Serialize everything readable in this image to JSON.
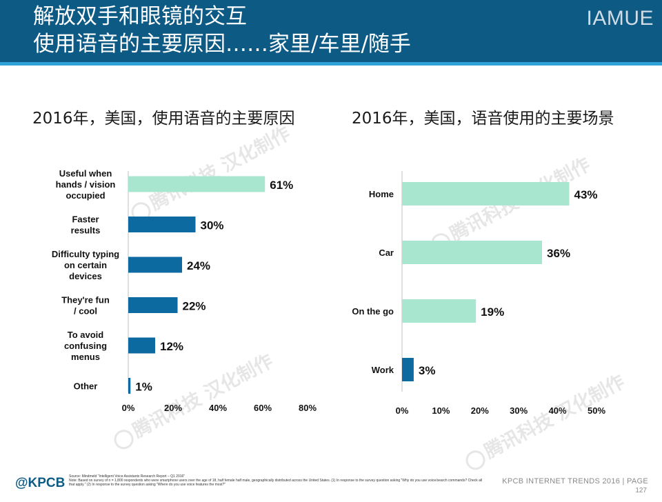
{
  "header": {
    "title_line1": "解放双手和眼镜的交互",
    "title_line2": "使用语音的主要原因……家里/车里/随手",
    "brand": "IAMUE"
  },
  "colors": {
    "header_bg": "#0d5a85",
    "accent_line": "#2fa3d8",
    "bar_light": "#a8e6cf",
    "bar_dark": "#0d6aa0"
  },
  "watermark_text": "腾讯科技 汉化制作",
  "chart_data": [
    {
      "type": "bar",
      "orientation": "horizontal",
      "title": "2016年，美国，使用语音的主要原因",
      "categories": [
        "Useful when hands / vision occupied",
        "Faster results",
        "Difficulty typing on certain devices",
        "They're fun / cool",
        "To avoid confusing menus",
        "Other"
      ],
      "category_lines": [
        [
          "Useful when",
          "hands / vision",
          "occupied"
        ],
        [
          "Faster",
          "results"
        ],
        [
          "Difficulty typing",
          "on certain",
          "devices"
        ],
        [
          "They're fun",
          "/ cool"
        ],
        [
          "To avoid",
          "confusing",
          "menus"
        ],
        [
          "Other"
        ]
      ],
      "values": [
        61,
        30,
        24,
        22,
        12,
        1
      ],
      "value_labels": [
        "61%",
        "30%",
        "24%",
        "22%",
        "12%",
        "1%"
      ],
      "highlight": [
        true,
        false,
        false,
        false,
        false,
        false
      ],
      "xlim": [
        0,
        80
      ],
      "xticks": [
        "0%",
        "20%",
        "40%",
        "60%",
        "80%"
      ],
      "grid": false
    },
    {
      "type": "bar",
      "orientation": "horizontal",
      "title": "2016年，美国，语音使用的主要场景",
      "categories": [
        "Home",
        "Car",
        "On the go",
        "Work"
      ],
      "category_lines": [
        [
          "Home"
        ],
        [
          "Car"
        ],
        [
          "On the go"
        ],
        [
          "Work"
        ]
      ],
      "values": [
        43,
        36,
        19,
        3
      ],
      "value_labels": [
        "43%",
        "36%",
        "19%",
        "3%"
      ],
      "highlight": [
        true,
        true,
        true,
        false
      ],
      "xlim": [
        0,
        50
      ],
      "xticks": [
        "0%",
        "10%",
        "20%",
        "30%",
        "40%",
        "50%"
      ],
      "grid": false
    }
  ],
  "footer": {
    "logo": "@KPCB",
    "source_line1": "Source: Mindmeld \"Intelligent Voice Assistants Research Report – Q1 2016\"",
    "source_line2": "Note: Based on survey of n = 1,800 respondents who were smartphone users over the age of 18, half female half male, geographically distributed across the United States. (1) In response to the survey question asking \"Why do you use voice/search commands? Check all that apply.\" (2) In response to the survey question asking \"Where do you use voice features the most?\"",
    "report": "KPCB INTERNET TRENDS 2016  |  PAGE",
    "page": "127"
  }
}
